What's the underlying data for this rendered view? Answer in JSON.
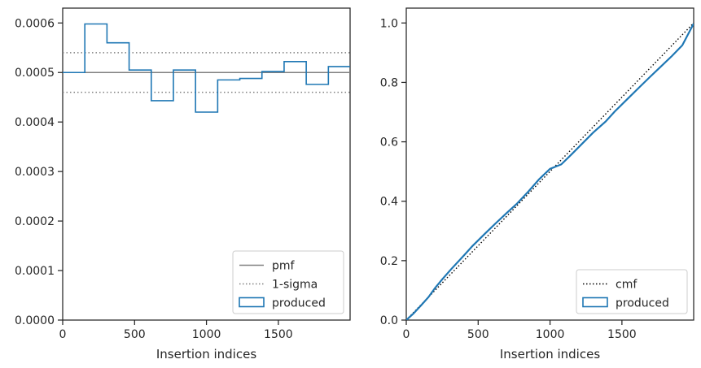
{
  "chart_data": [
    {
      "type": "histogram",
      "xlabel": "Insertion indices",
      "ylabel": "",
      "xlim": [
        0,
        1999
      ],
      "ylim": [
        0,
        0.00063
      ],
      "xticks": [
        0,
        500,
        1000,
        1500
      ],
      "yticks": [
        0.0,
        0.0001,
        0.0002,
        0.0003,
        0.0004,
        0.0005,
        0.0006
      ],
      "ytick_labels": [
        "0.0000",
        "0.0001",
        "0.0002",
        "0.0003",
        "0.0004",
        "0.0005",
        "0.0006"
      ],
      "grid": false,
      "legend": {
        "placement": "lower-right",
        "entries": [
          {
            "label": "pmf",
            "style": "solid",
            "color": "#808080"
          },
          {
            "label": "1-sigma",
            "style": "dotted",
            "color": "#808080"
          },
          {
            "label": "produced",
            "style": "step-box",
            "color": "#1f77b4"
          }
        ]
      },
      "reference_lines": [
        {
          "name": "pmf",
          "y": 0.0005,
          "style": "solid",
          "color": "#808080"
        },
        {
          "name": "1-sigma",
          "y": 0.00054,
          "style": "dotted",
          "color": "#808080"
        },
        {
          "name": "1-sigma",
          "y": 0.00046,
          "style": "dotted",
          "color": "#808080"
        }
      ],
      "series": [
        {
          "name": "produced",
          "color": "#1f77b4",
          "bin_edges": [
            0,
            154,
            308,
            462,
            616,
            770,
            924,
            1078,
            1232,
            1386,
            1540,
            1694,
            1848,
            1999
          ],
          "values": [
            0.0005,
            0.000598,
            0.00056,
            0.000505,
            0.000443,
            0.000505,
            0.00042,
            0.000485,
            0.000488,
            0.000502,
            0.000522,
            0.000476,
            0.000512
          ]
        }
      ]
    },
    {
      "type": "line",
      "xlabel": "Insertion indices",
      "ylabel": "",
      "xlim": [
        0,
        1999
      ],
      "ylim": [
        0,
        1.05
      ],
      "xticks": [
        0,
        500,
        1000,
        1500
      ],
      "yticks": [
        0.0,
        0.2,
        0.4,
        0.6,
        0.8,
        1.0
      ],
      "ytick_labels": [
        "0.0",
        "0.2",
        "0.4",
        "0.6",
        "0.8",
        "1.0"
      ],
      "grid": false,
      "legend": {
        "placement": "lower-right",
        "entries": [
          {
            "label": "cmf",
            "style": "dotted",
            "color": "#000000"
          },
          {
            "label": "produced",
            "style": "step-box",
            "color": "#1f77b4"
          }
        ]
      },
      "series": [
        {
          "name": "cmf",
          "style": "dotted",
          "color": "#000000",
          "x": [
            0,
            1999
          ],
          "y": [
            0,
            1.0
          ]
        },
        {
          "name": "produced",
          "style": "solid",
          "color": "#1f77b4",
          "x": [
            0,
            50,
            100,
            154,
            200,
            250,
            308,
            400,
            462,
            550,
            616,
            700,
            770,
            850,
            924,
            1000,
            1078,
            1150,
            1232,
            1300,
            1386,
            1450,
            1540,
            1620,
            1694,
            1770,
            1848,
            1920,
            1999
          ],
          "y": [
            0,
            0.022,
            0.048,
            0.077,
            0.108,
            0.137,
            0.169,
            0.217,
            0.25,
            0.292,
            0.323,
            0.361,
            0.392,
            0.433,
            0.474,
            0.509,
            0.524,
            0.558,
            0.598,
            0.631,
            0.668,
            0.702,
            0.745,
            0.783,
            0.818,
            0.853,
            0.889,
            0.925,
            0.998
          ]
        }
      ]
    }
  ]
}
